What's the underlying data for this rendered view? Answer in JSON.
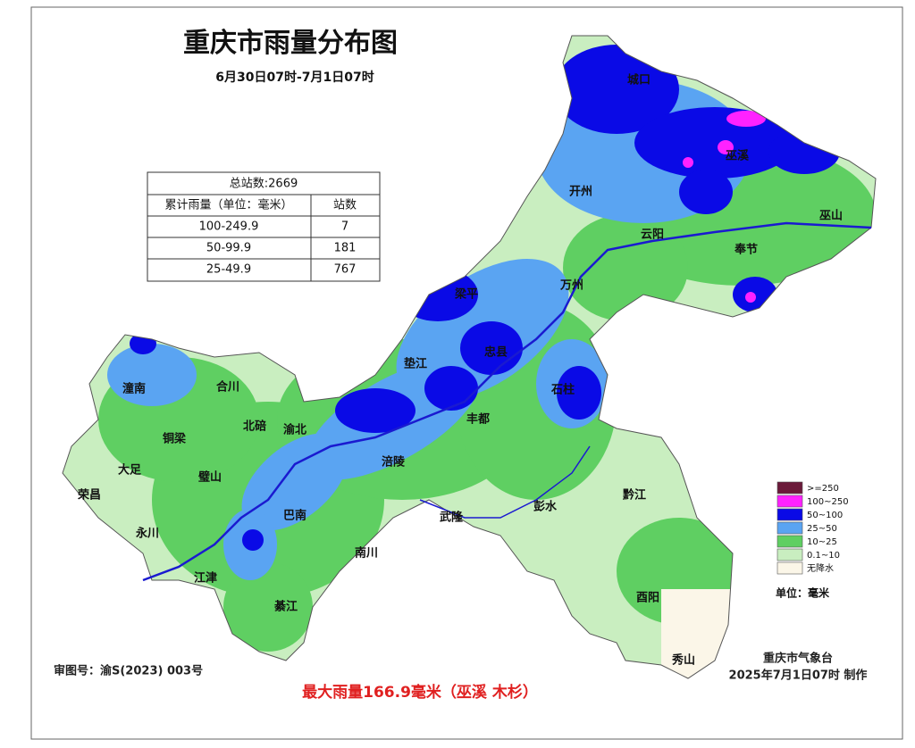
{
  "header": {
    "title": "重庆市雨量分布图",
    "subtitle": "6月30日07时-7月1日07时"
  },
  "table": {
    "total": "总站数:2669",
    "columns": [
      "累计雨量（单位：毫米）",
      "站数"
    ],
    "rows": [
      [
        "100-249.9",
        "7"
      ],
      [
        "50-99.9",
        "181"
      ],
      [
        "25-49.9",
        "767"
      ]
    ]
  },
  "legend": {
    "items": [
      {
        "label": ">=250",
        "color": "#6b1a3a"
      },
      {
        "label": "100~250",
        "color": "#ff22ff"
      },
      {
        "label": "50~100",
        "color": "#0a0ae6"
      },
      {
        "label": "25~50",
        "color": "#5aa4f2"
      },
      {
        "label": "10~25",
        "color": "#5fcf62"
      },
      {
        "label": "0.1~10",
        "color": "#c9eec0"
      },
      {
        "label": "无降水",
        "color": "#fbf6e8"
      }
    ],
    "unit": "单位：毫米"
  },
  "map": {
    "labels": [
      "城口",
      "巫溪",
      "开州",
      "巫山",
      "云阳",
      "奉节",
      "梁平",
      "万州",
      "垫江",
      "忠县",
      "石柱",
      "潼南",
      "合川",
      "北碚",
      "渝北",
      "铜梁",
      "大足",
      "璧山",
      "荣昌",
      "永川",
      "江津",
      "綦江",
      "巴南",
      "南川",
      "涪陵",
      "武隆",
      "彭水",
      "黔江",
      "酉阳",
      "秀山",
      "丰都"
    ]
  },
  "footer": {
    "approval": "审图号：渝S(2023) 003号",
    "max_rain": "最大雨量166.9毫米（巫溪 木杉）",
    "agency": "重庆市气象台",
    "date": "2025年7月1日07时 制作"
  }
}
